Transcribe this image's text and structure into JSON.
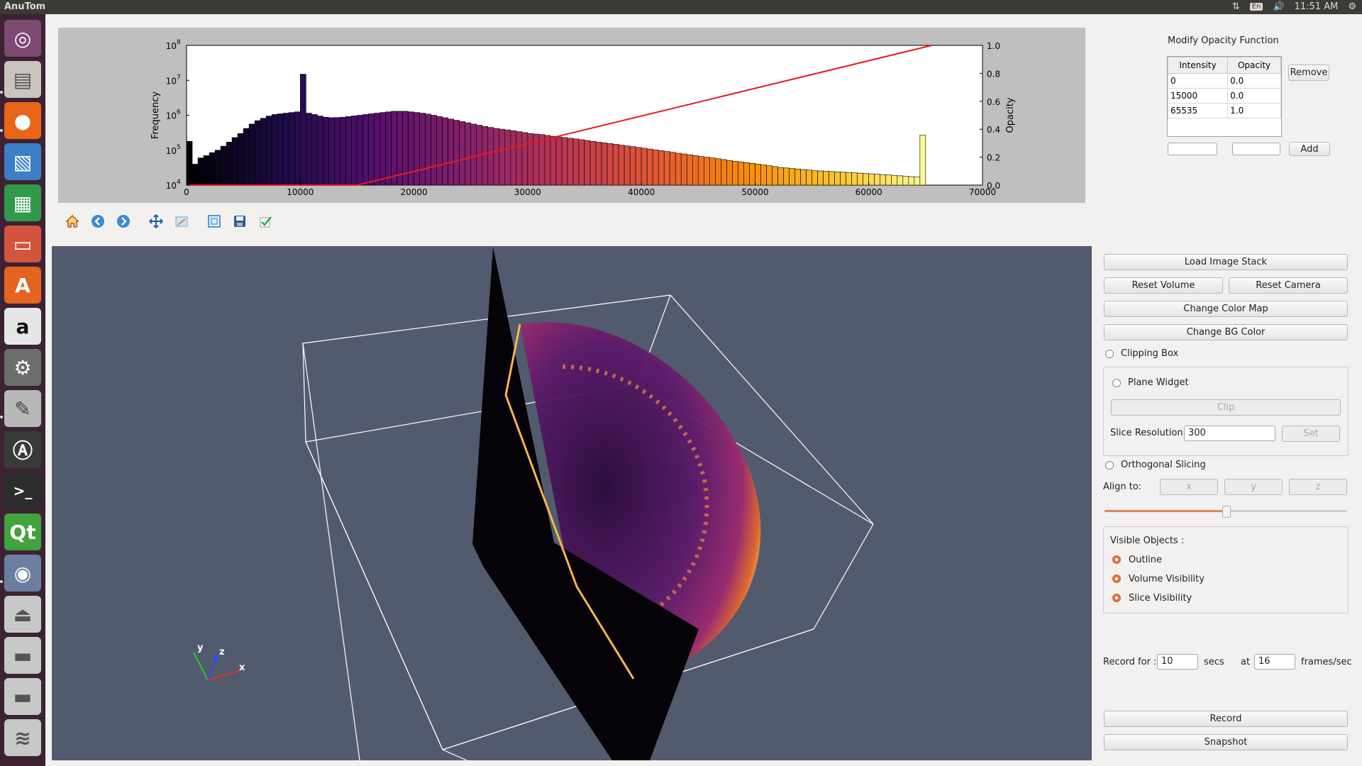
{
  "app": {
    "title": "AnuTom"
  },
  "system_tray": {
    "time": "11:51 AM",
    "lang": "En"
  },
  "launcher": [
    {
      "name": "ubuntu-dash-icon"
    },
    {
      "name": "files-icon"
    },
    {
      "name": "firefox-icon"
    },
    {
      "name": "image-viewer-icon"
    },
    {
      "name": "calc-icon"
    },
    {
      "name": "impress-icon"
    },
    {
      "name": "software-center-icon"
    },
    {
      "name": "amazon-icon"
    },
    {
      "name": "settings-icon"
    },
    {
      "name": "text-editor-icon"
    },
    {
      "name": "software-updater-icon"
    },
    {
      "name": "terminal-icon"
    },
    {
      "name": "qt-creator-icon"
    },
    {
      "name": "camera-icon"
    },
    {
      "name": "usb-drive-icon"
    },
    {
      "name": "disk-icon"
    },
    {
      "name": "disk-icon"
    },
    {
      "name": "trash-icon"
    }
  ],
  "colors": {
    "opacity_line": "#e8191a",
    "viewport_bg": "#525b6e",
    "accent": "#e2733f"
  },
  "chart_data": {
    "type": "bar",
    "x_ticks": [
      "0",
      "10000",
      "20000",
      "30000",
      "40000",
      "50000",
      "60000",
      "70000"
    ],
    "xlim": [
      0,
      70000
    ],
    "ylabel": "Frequency",
    "y_scale": "log",
    "ylim": [
      10000,
      100000000
    ],
    "y_ticks": [
      "10",
      "10",
      "10",
      "10",
      "10"
    ],
    "y_tick_exponents": [
      "4",
      "5",
      "6",
      "7",
      "8"
    ],
    "y2label": "Opacity",
    "y2_ticks": [
      "0.0",
      "0.2",
      "0.4",
      "0.6",
      "0.8",
      "1.0"
    ],
    "y2lim": [
      0,
      1
    ],
    "colormap": "inferno",
    "histogram": {
      "bin_width": 500,
      "bin_starts_from": 0,
      "counts": [
        180000,
        40000,
        60000,
        70000,
        85000,
        100000,
        130000,
        170000,
        230000,
        300000,
        420000,
        560000,
        700000,
        820000,
        950000,
        1050000,
        1100000,
        1150000,
        1200000,
        1250000,
        15000000,
        1150000,
        1050000,
        950000,
        880000,
        850000,
        860000,
        880000,
        920000,
        960000,
        1000000,
        1050000,
        1100000,
        1150000,
        1200000,
        1250000,
        1300000,
        1300000,
        1300000,
        1250000,
        1200000,
        1150000,
        1080000,
        1000000,
        920000,
        850000,
        780000,
        720000,
        660000,
        610000,
        560000,
        520000,
        480000,
        450000,
        420000,
        400000,
        380000,
        360000,
        340000,
        320000,
        300000,
        290000,
        280000,
        265000,
        250000,
        240000,
        230000,
        220000,
        210000,
        200000,
        190000,
        180000,
        170000,
        162000,
        155000,
        148000,
        140000,
        133000,
        127000,
        120000,
        114000,
        108000,
        102000,
        97000,
        92000,
        87000,
        82000,
        78000,
        74000,
        70000,
        66000,
        63000,
        60000,
        57000,
        54000,
        51000,
        48000,
        46000,
        44000,
        42000,
        40000,
        38000,
        36000,
        34000,
        32000,
        31000,
        30000,
        29000,
        28000,
        27000,
        26000,
        25500,
        25000,
        24500,
        24000,
        23500,
        23000,
        22500,
        22000,
        21500,
        21000,
        20500,
        20000,
        19500,
        19000,
        18500,
        18000,
        17500,
        17000,
        270000
      ]
    },
    "opacity_function": [
      [
        0,
        0.0
      ],
      [
        15000,
        0.0
      ],
      [
        65535,
        1.0
      ]
    ]
  },
  "opacity_panel": {
    "title": "Modify Opacity Function",
    "columns": [
      "Intensity",
      "Opacity"
    ],
    "rows": [
      [
        "0",
        "0.0"
      ],
      [
        "15000",
        "0.0"
      ],
      [
        "65535",
        "1.0"
      ]
    ],
    "remove_label": "Remove",
    "add_label": "Add",
    "intensity_input": "",
    "opacity_input": ""
  },
  "toolbar": [
    {
      "name": "home-icon"
    },
    {
      "name": "back-icon"
    },
    {
      "name": "forward-icon"
    },
    {
      "name": "pan-icon"
    },
    {
      "name": "zoom-icon"
    },
    {
      "name": "configure-subplots-icon"
    },
    {
      "name": "save-icon"
    },
    {
      "name": "apply-icon"
    }
  ],
  "axes_labels": {
    "x": "x",
    "y": "y",
    "z": "z"
  },
  "controls": {
    "load_image_stack": "Load Image Stack",
    "reset_volume": "Reset Volume",
    "reset_camera": "Reset Camera",
    "change_color_map": "Change Color Map",
    "change_bg_color": "Change BG Color",
    "clipping_box": "Clipping Box",
    "plane_widget": "Plane Widget",
    "clip": "Clip",
    "slice_resolution_label": "Slice Resolution:",
    "slice_resolution_value": "300",
    "set": "Set",
    "orthogonal_slicing": "Orthogonal Slicing",
    "align_to": "Align to:",
    "align_x": "x",
    "align_y": "y",
    "align_z": "z",
    "slider_value": 0.5,
    "visible_objects": "Visible Objects :",
    "outline": "Outline",
    "volume_visibility": "Volume Visibility",
    "slice_visibility": "Slice Visibility",
    "record_for": "Record for :",
    "record_secs_value": "10",
    "secs": "secs",
    "at": "at",
    "fps_value": "16",
    "frames_sec": "frames/sec",
    "record": "Record",
    "snapshot": "Snapshot"
  }
}
